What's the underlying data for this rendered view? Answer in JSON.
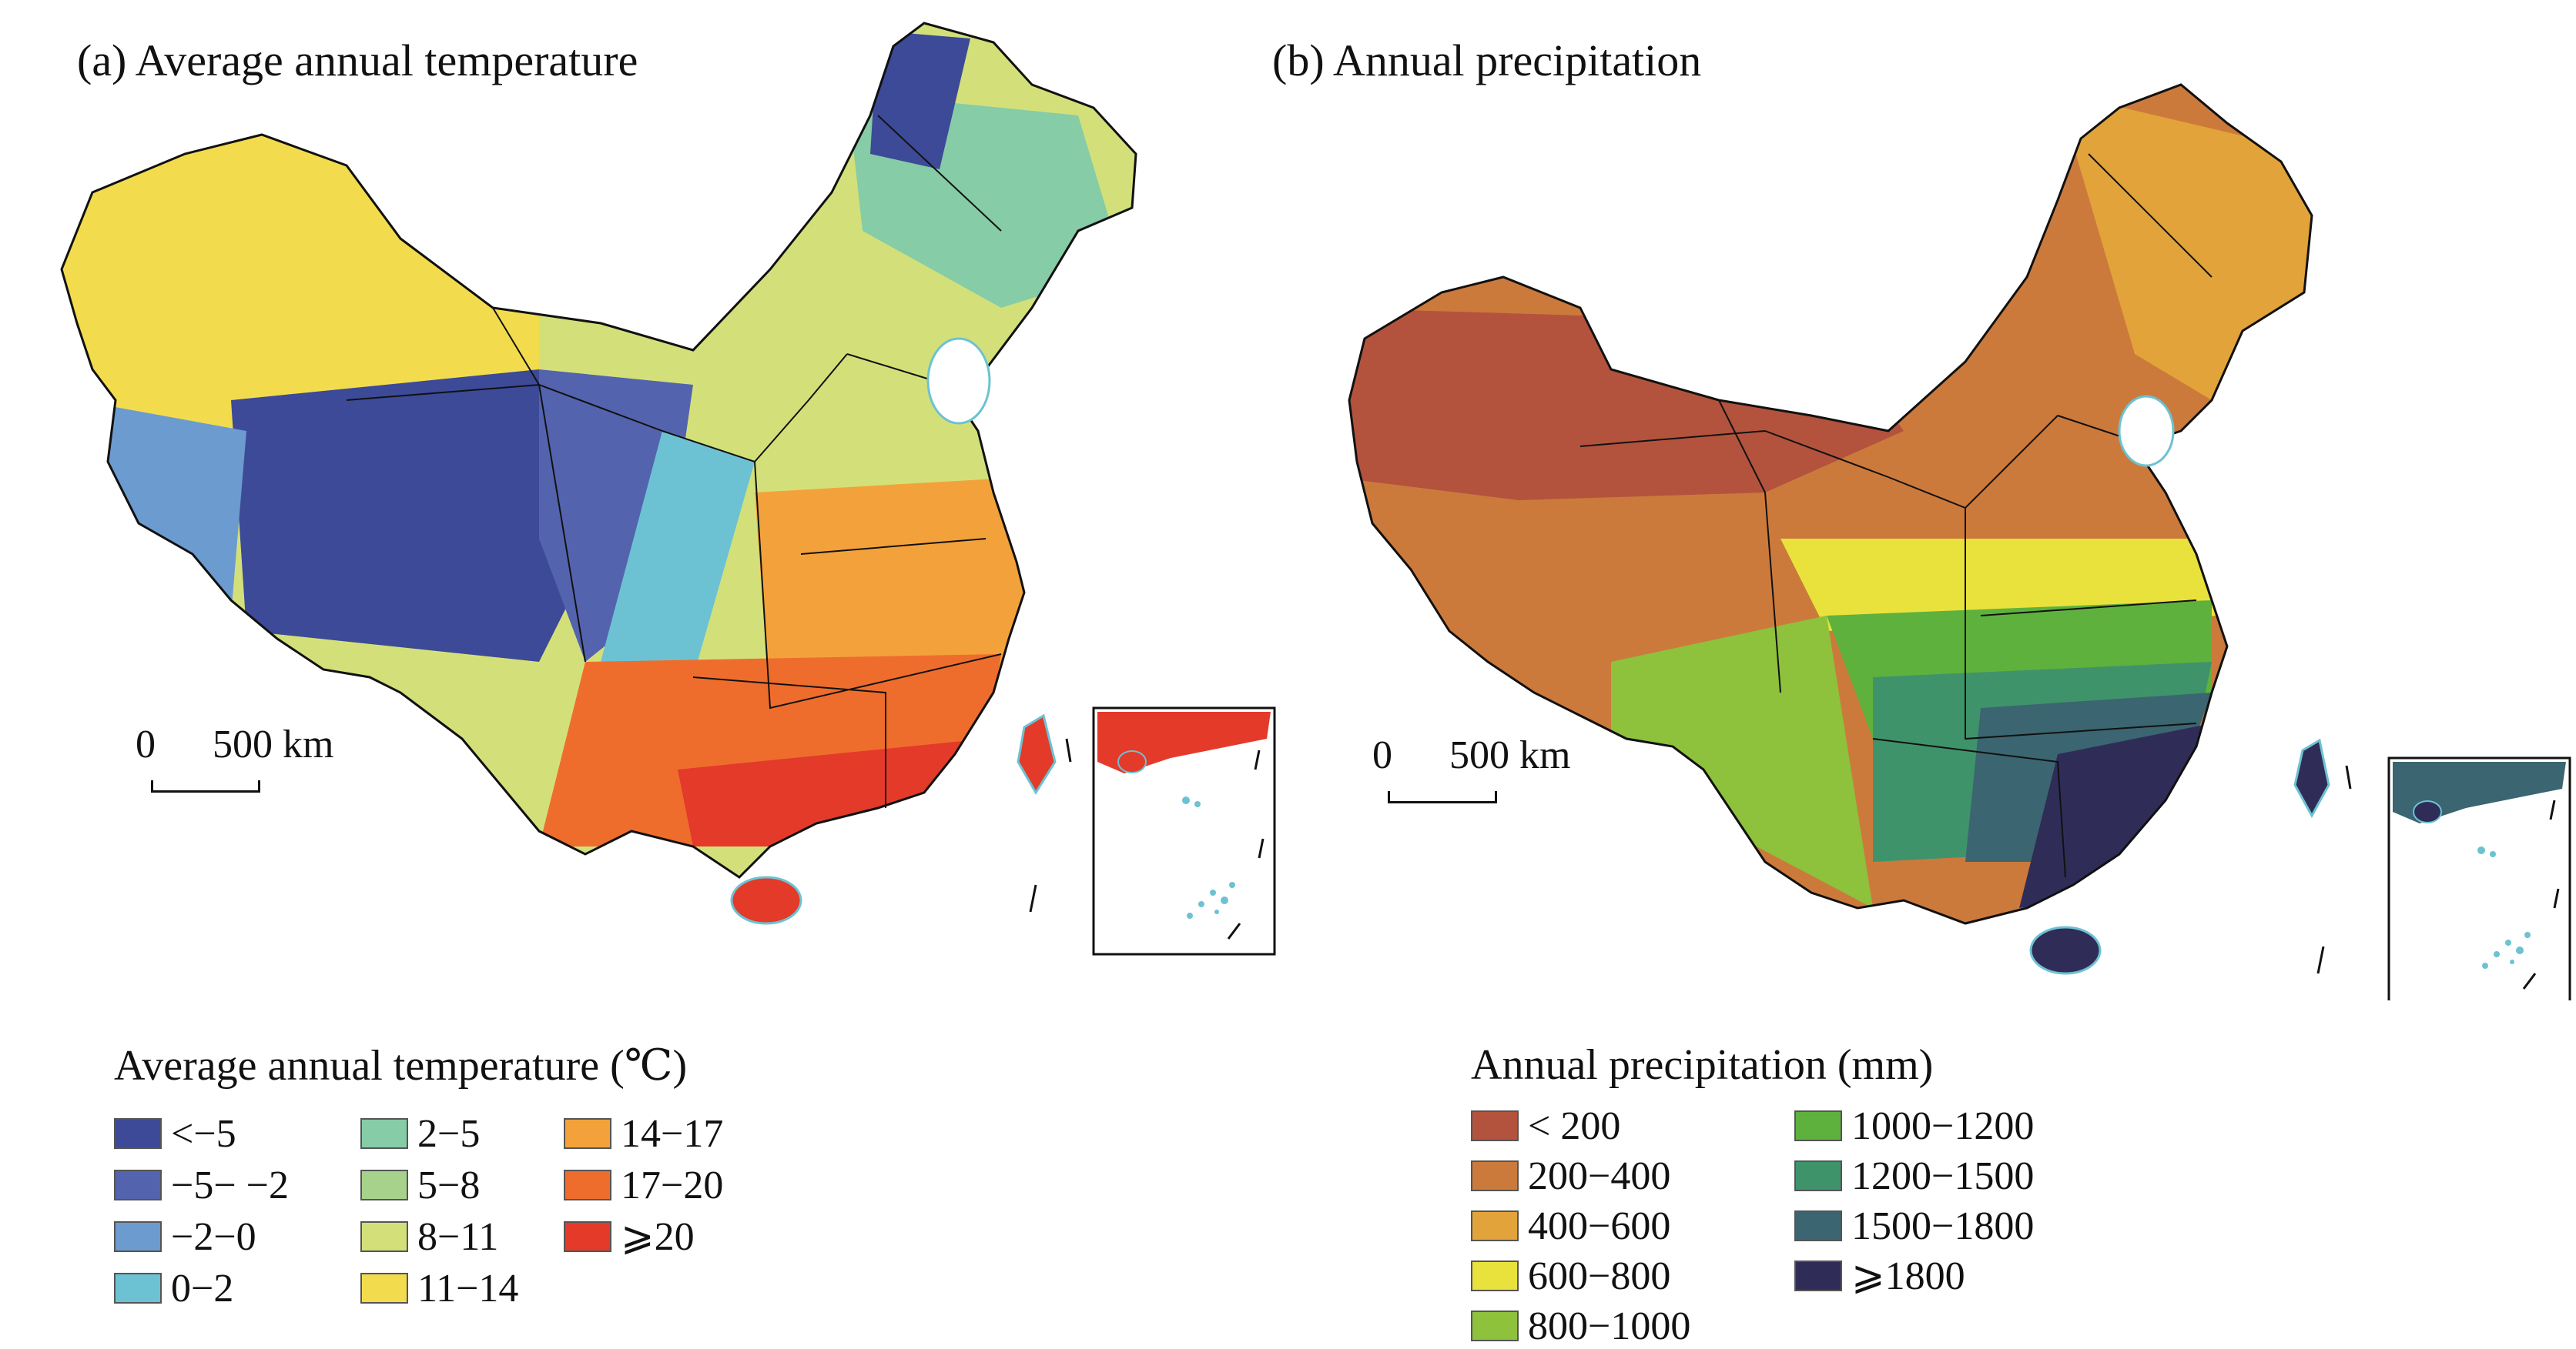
{
  "panel_a": {
    "title": "(a) Average annual temperature",
    "scale": {
      "zero": "0",
      "distance": "500 km"
    },
    "legend": {
      "title": "Average annual temperature (℃)",
      "items": [
        {
          "label": "<−5",
          "color": "#3c4a97"
        },
        {
          "label": "−5− −2",
          "color": "#5463ad"
        },
        {
          "label": "−2−0",
          "color": "#6c9bcf"
        },
        {
          "label": "0−2",
          "color": "#6cc2d2"
        },
        {
          "label": "2−5",
          "color": "#86cca6"
        },
        {
          "label": "5−8",
          "color": "#a7d28b"
        },
        {
          "label": "8−11",
          "color": "#d3e07a"
        },
        {
          "label": "11−14",
          "color": "#f2dc4e"
        },
        {
          "label": "14−17",
          "color": "#f3a23b"
        },
        {
          "label": "17−20",
          "color": "#ee6d2d"
        },
        {
          "label": "⩾20",
          "color": "#e43a2a"
        }
      ]
    }
  },
  "panel_b": {
    "title": "(b) Annual precipitation",
    "scale": {
      "zero": "0",
      "distance": "500 km"
    },
    "legend": {
      "title": "Annual precipitation (mm)",
      "items": [
        {
          "label": "< 200",
          "color": "#b3533e"
        },
        {
          "label": "200−400",
          "color": "#cc7a3c"
        },
        {
          "label": "400−600",
          "color": "#e2a33a"
        },
        {
          "label": "600−800",
          "color": "#e9e23c"
        },
        {
          "label": "800−1000",
          "color": "#8ec13c"
        },
        {
          "label": "1000−1200",
          "color": "#5fb13d"
        },
        {
          "label": "1200−1500",
          "color": "#3f936a"
        },
        {
          "label": "1500−1800",
          "color": "#3b6570"
        },
        {
          "label": "⩾1800",
          "color": "#2f2d58"
        }
      ]
    }
  }
}
